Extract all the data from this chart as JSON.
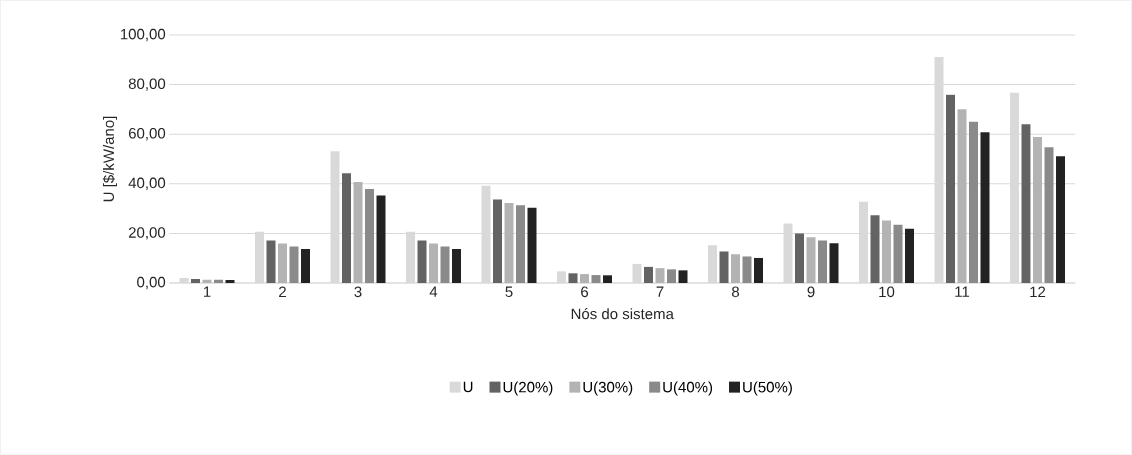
{
  "chart_data": {
    "type": "bar",
    "xlabel": "Nós do sistema",
    "ylabel": "U [$/kW/ano]",
    "categories": [
      "1",
      "2",
      "3",
      "4",
      "5",
      "6",
      "7",
      "8",
      "9",
      "10",
      "11",
      "12"
    ],
    "series": [
      {
        "name": "U",
        "color": "#d9d9d9",
        "values": [
          2.0,
          20.7,
          53.1,
          20.7,
          39.2,
          4.7,
          7.7,
          15.2,
          24.0,
          32.8,
          91.1,
          76.7
        ]
      },
      {
        "name": "U(20%)",
        "color": "#636363",
        "values": [
          1.6,
          17.1,
          44.3,
          17.1,
          33.7,
          3.9,
          6.5,
          12.7,
          20.0,
          27.3,
          75.9,
          64.0
        ]
      },
      {
        "name": "U(30%)",
        "color": "#b3b3b3",
        "values": [
          1.3,
          15.9,
          40.7,
          15.9,
          32.3,
          3.6,
          6.0,
          11.6,
          18.4,
          25.2,
          70.1,
          58.9
        ]
      },
      {
        "name": "U(40%)",
        "color": "#8a8a8a",
        "values": [
          1.3,
          14.7,
          37.9,
          14.7,
          31.3,
          3.2,
          5.5,
          10.7,
          17.1,
          23.5,
          65.1,
          54.7
        ]
      },
      {
        "name": "U(50%)",
        "color": "#222222",
        "values": [
          1.2,
          13.7,
          35.3,
          13.7,
          30.3,
          3.1,
          5.1,
          10.1,
          16.0,
          21.9,
          60.8,
          51.1
        ]
      }
    ],
    "ylim": [
      0,
      100
    ],
    "yticks": [
      {
        "value": 0,
        "label": "0,00"
      },
      {
        "value": 20,
        "label": "20,00"
      },
      {
        "value": 40,
        "label": "40,00"
      },
      {
        "value": 60,
        "label": "60,00"
      },
      {
        "value": 80,
        "label": "80,00"
      },
      {
        "value": 100,
        "label": "100,00"
      }
    ],
    "grid": "y",
    "legend": "bottom"
  }
}
